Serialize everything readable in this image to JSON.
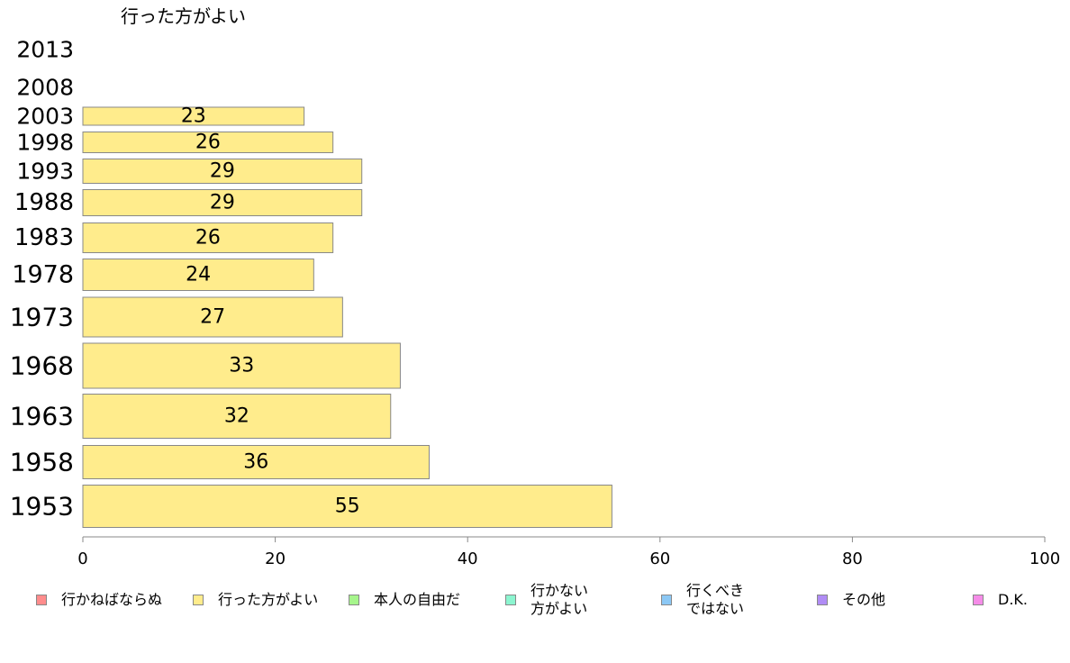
{
  "chart_data": {
    "type": "bar",
    "orientation": "horizontal",
    "title": "行った方がよい",
    "categories": [
      "2013",
      "2008",
      "2003",
      "1998",
      "1993",
      "1988",
      "1983",
      "1978",
      "1973",
      "1968",
      "1963",
      "1958",
      "1953"
    ],
    "values": [
      null,
      null,
      23,
      26,
      29,
      29,
      26,
      24,
      27,
      33,
      32,
      36,
      55
    ],
    "xlim": [
      0,
      100
    ],
    "x_ticks": [
      "0",
      "20",
      "40",
      "60",
      "80",
      "100"
    ],
    "bar_color": "#ffec8c",
    "legend": [
      {
        "label": "行かねばならぬ",
        "color": "#ff8c8c"
      },
      {
        "label": "行った方がよい",
        "color": "#ffec8c"
      },
      {
        "label": "本人の自由だ",
        "color": "#a6f58c"
      },
      {
        "label": "行かない\n方がよい",
        "color": "#8cf5d0"
      },
      {
        "label": "行くべき\nではない",
        "color": "#8cc8f5"
      },
      {
        "label": "その他",
        "color": "#b08cf5"
      },
      {
        "label": "D.K.",
        "color": "#f58ce8"
      }
    ],
    "legend_position": "bottom"
  }
}
